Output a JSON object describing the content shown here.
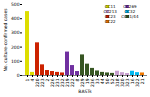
{
  "chart_data": {
    "type": "bar",
    "title": "",
    "xlabel": "BASTs",
    "ylabel": "No. culture-confirmed cases",
    "categories": [
      "1",
      "4",
      "220",
      "223",
      "2",
      "226",
      "231",
      "232",
      "219",
      "222",
      "8",
      "229",
      "19",
      "236",
      "33",
      "44",
      "50",
      "52",
      "318",
      "320",
      "323",
      "16",
      "322",
      "21"
    ],
    "series": [
      {
        "name": "CC11",
        "color": "#dddd00",
        "values": [
          450,
          22,
          null,
          null,
          null,
          null,
          null,
          null,
          null,
          null,
          null,
          null,
          null,
          null,
          null,
          null,
          null,
          null,
          null,
          null,
          null,
          null,
          null,
          null
        ]
      },
      {
        "name": "CC213",
        "color": "#c8a0d0",
        "values": [
          null,
          null,
          null,
          null,
          null,
          null,
          null,
          null,
          null,
          null,
          null,
          null,
          null,
          null,
          null,
          null,
          null,
          null,
          30,
          20,
          14,
          null,
          null,
          null
        ]
      },
      {
        "name": "CC23",
        "color": "#cc2200",
        "values": [
          null,
          null,
          230,
          75,
          35,
          28,
          22,
          18,
          null,
          null,
          null,
          null,
          null,
          null,
          null,
          null,
          null,
          null,
          null,
          null,
          null,
          null,
          null,
          null
        ]
      },
      {
        "name": "CC22",
        "color": "#f07800",
        "values": [
          null,
          null,
          null,
          null,
          null,
          null,
          null,
          null,
          null,
          null,
          null,
          null,
          null,
          null,
          null,
          null,
          null,
          null,
          null,
          null,
          null,
          null,
          null,
          18
        ]
      },
      {
        "name": "CC269",
        "color": "#7030a0",
        "values": [
          null,
          null,
          null,
          null,
          null,
          null,
          null,
          null,
          165,
          70,
          28,
          null,
          null,
          null,
          null,
          null,
          null,
          null,
          null,
          null,
          null,
          null,
          null,
          null
        ]
      },
      {
        "name": "CC32",
        "color": "#00b8f0",
        "values": [
          null,
          null,
          null,
          null,
          null,
          null,
          null,
          null,
          null,
          null,
          null,
          null,
          null,
          null,
          null,
          null,
          null,
          null,
          null,
          null,
          null,
          30,
          20,
          null
        ]
      },
      {
        "name": "CC41/44",
        "color": "#375623",
        "values": [
          null,
          null,
          null,
          null,
          null,
          null,
          null,
          null,
          null,
          null,
          null,
          145,
          80,
          50,
          32,
          22,
          18,
          15,
          null,
          null,
          null,
          null,
          null,
          null
        ]
      }
    ],
    "ylim": [
      0,
      500
    ],
    "yticks": [
      0,
      100,
      200,
      300,
      400,
      500
    ],
    "grid": false,
    "legend": "upper right"
  }
}
